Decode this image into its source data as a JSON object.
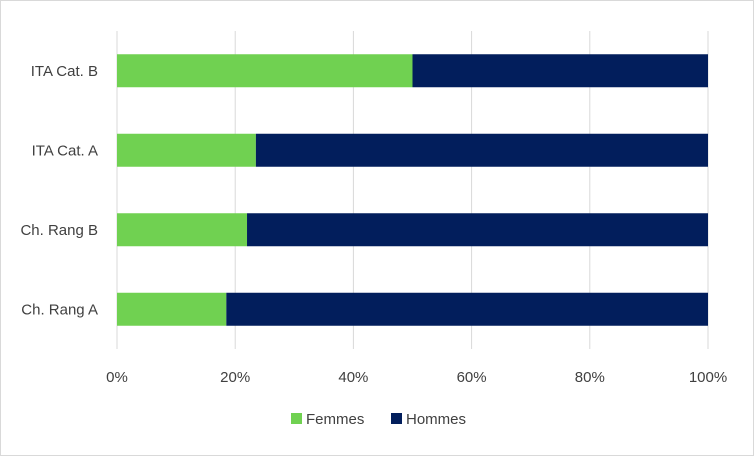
{
  "chart_data": {
    "type": "bar",
    "orientation": "horizontal",
    "stacked": "percent",
    "categories": [
      "ITA Cat. B",
      "ITA Cat. A",
      "Ch. Rang B",
      "Ch. Rang A"
    ],
    "series": [
      {
        "name": "Femmes",
        "color": "#70d151",
        "values": [
          50,
          23.5,
          22,
          18.5
        ]
      },
      {
        "name": "Hommes",
        "color": "#021e5c",
        "values": [
          50,
          76.5,
          78,
          81.5
        ]
      }
    ],
    "xlim": [
      0,
      100
    ],
    "x_ticks": [
      "0%",
      "20%",
      "40%",
      "60%",
      "80%",
      "100%"
    ],
    "grid": "vertical",
    "legend_position": "bottom"
  }
}
